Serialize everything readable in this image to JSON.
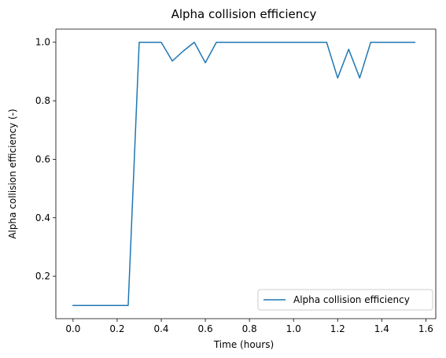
{
  "chart_data": {
    "type": "line",
    "title": "Alpha collision efficiency",
    "xlabel": "Time (hours)",
    "ylabel": "Alpha collision efficiency (-)",
    "xlim": [
      -0.078,
      1.645
    ],
    "ylim": [
      0.055,
      1.045
    ],
    "xticks": [
      {
        "value": 0.0,
        "label": "0.0"
      },
      {
        "value": 0.2,
        "label": "0.2"
      },
      {
        "value": 0.4,
        "label": "0.4"
      },
      {
        "value": 0.6,
        "label": "0.6"
      },
      {
        "value": 0.8,
        "label": "0.8"
      },
      {
        "value": 1.0,
        "label": "1.0"
      },
      {
        "value": 1.2,
        "label": "1.2"
      },
      {
        "value": 1.4,
        "label": "1.4"
      },
      {
        "value": 1.6,
        "label": "1.6"
      }
    ],
    "yticks": [
      {
        "value": 0.2,
        "label": "0.2"
      },
      {
        "value": 0.4,
        "label": "0.4"
      },
      {
        "value": 0.6,
        "label": "0.6"
      },
      {
        "value": 0.8,
        "label": "0.8"
      },
      {
        "value": 1.0,
        "label": "1.0"
      }
    ],
    "grid": false,
    "legend_position": "lower right",
    "series": [
      {
        "name": "Alpha collision efficiency",
        "color": "#1f77b4",
        "x": [
          0.0,
          0.05,
          0.1,
          0.15,
          0.2,
          0.25,
          0.3,
          0.35,
          0.4,
          0.45,
          0.5,
          0.55,
          0.6,
          0.65,
          0.7,
          0.75,
          0.8,
          0.85,
          0.9,
          0.95,
          1.0,
          1.05,
          1.1,
          1.15,
          1.2,
          1.25,
          1.3,
          1.35,
          1.4,
          1.45,
          1.5,
          1.55
        ],
        "y": [
          0.1,
          0.1,
          0.1,
          0.1,
          0.1,
          0.1,
          1.0,
          1.0,
          1.0,
          0.936,
          0.97,
          1.0,
          0.93,
          1.0,
          1.0,
          1.0,
          1.0,
          1.0,
          1.0,
          1.0,
          1.0,
          1.0,
          1.0,
          1.0,
          0.878,
          0.976,
          0.878,
          1.0,
          1.0,
          1.0,
          1.0,
          1.0
        ]
      }
    ]
  }
}
